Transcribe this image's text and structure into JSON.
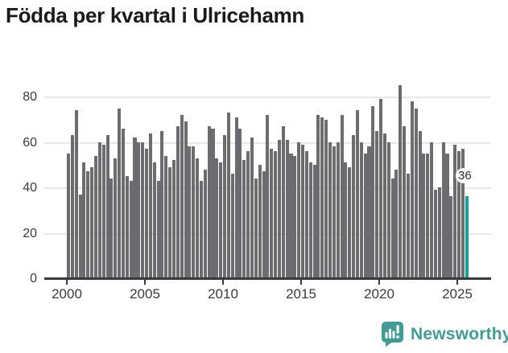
{
  "title": "Födda per kvartal i Ulricehamn",
  "chart_data": {
    "type": "bar",
    "title": "Födda per kvartal i Ulricehamn",
    "x_start": "2000-Q1",
    "x_end": "2025-Q3",
    "x_tick_labels": [
      "2000",
      "2005",
      "2010",
      "2015",
      "2020",
      "2025"
    ],
    "y_ticks": [
      "0",
      "20",
      "40",
      "60",
      "80"
    ],
    "ylim": [
      0,
      85
    ],
    "grid": "horizontal",
    "legend": "none",
    "bar_color": "#6c6c70",
    "highlight_color": "#16a099",
    "highlight_index": 102,
    "last_value_label": "36",
    "values": [
      55,
      63,
      74,
      37,
      51,
      47,
      49,
      54,
      60,
      59,
      63,
      44,
      53,
      75,
      66,
      45,
      43,
      62,
      60,
      60,
      57,
      64,
      51,
      43,
      65,
      54,
      49,
      52,
      67,
      72,
      69,
      58,
      58,
      53,
      43,
      48,
      67,
      66,
      53,
      51,
      63,
      73,
      46,
      71,
      66,
      52,
      56,
      62,
      44,
      50,
      47,
      72,
      57,
      56,
      61,
      67,
      61,
      55,
      54,
      60,
      59,
      56,
      51,
      50,
      72,
      71,
      70,
      60,
      58,
      60,
      72,
      51,
      49,
      63,
      74,
      60,
      55,
      58,
      76,
      65,
      79,
      64,
      60,
      44,
      48,
      85,
      67,
      46,
      78,
      75,
      65,
      55,
      55,
      60,
      39,
      40,
      60,
      55,
      36,
      59,
      56,
      57,
      36
    ]
  },
  "annotation": {
    "latest_value": "36"
  },
  "footer": {
    "brand": "Newsworthy",
    "brand_color": "#3f9d96"
  }
}
